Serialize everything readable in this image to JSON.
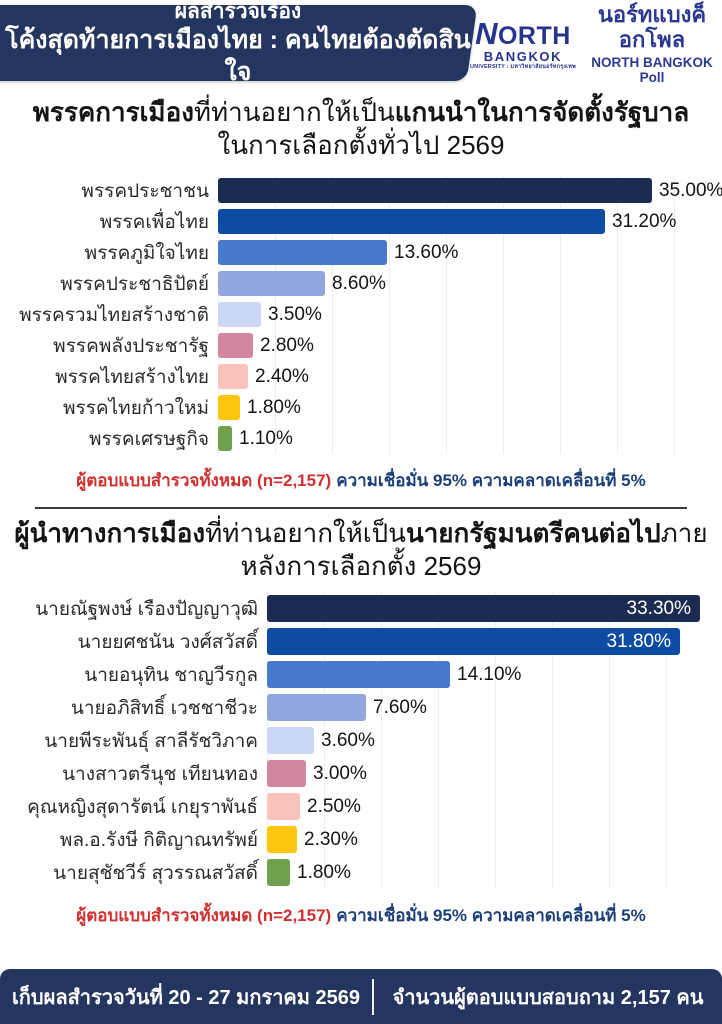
{
  "colors": {
    "navy_band": "#24365f",
    "bar_palette": [
      "#1b2b52",
      "#0c4ca3",
      "#4779cc",
      "#90a8dd",
      "#ccd6f5",
      "#d2879f",
      "#f9c3bc",
      "#fcc60d",
      "#70a04e"
    ],
    "note_red": "#d03030",
    "note_navy": "#1d3f77",
    "logo_blue": "#2b3990"
  },
  "header": {
    "banner_line1": "ผลสำรวจเรื่อง",
    "banner_line2": "โค้งสุดท้ายการเมืองไทย : คนไทยต้องตัดสินใจ",
    "logo": {
      "north": "ORTH",
      "north_initial": "N",
      "bangkok": "BANGKOK",
      "tagline": "UNIVERSITY : มหาวิทยาลัยนอร์ทกรุงเทพ",
      "poll_th": "นอร์ทแบงค็อกโพล",
      "poll_en": "NORTH BANGKOK Poll"
    }
  },
  "chart_data": [
    {
      "type": "bar",
      "orientation": "horizontal",
      "title": "พรรคการเมืองที่ท่านอยากให้เป็นแกนนำในการจัดตั้งรัฐบาล ในการเลือกตั้งทั่วไป 2569",
      "title_segments": [
        {
          "text": "พรรคการเมือง",
          "bold": true
        },
        {
          "text": "ที่ท่านอยากให้เป็น",
          "bold": false
        },
        {
          "text": "แกนนำในการจัดตั้งรัฐบาล",
          "bold": true
        }
      ],
      "title_line2": "ในการเลือกตั้งทั่วไป 2569",
      "categories": [
        "พรรคประชาชน",
        "พรรคเพื่อไทย",
        "พรรคภูมิใจไทย",
        "พรรคประชาธิปัตย์",
        "พรรครวมไทยสร้างชาติ",
        "พรรคพลังประชารัฐ",
        "พรรคไทยสร้างไทย",
        "พรรคไทยก้าวใหม่",
        "พรรคเศรษฐกิจ"
      ],
      "values": [
        35.0,
        31.2,
        13.6,
        8.6,
        3.5,
        2.8,
        2.4,
        1.8,
        1.1
      ],
      "value_labels": [
        "35.00%",
        "31.20%",
        "13.60%",
        "8.60%",
        "3.50%",
        "2.80%",
        "2.40%",
        "1.80%",
        "1.10%"
      ],
      "value_inside": [
        false,
        false,
        false,
        false,
        false,
        false,
        false,
        false,
        false
      ],
      "xlim": [
        0,
        40
      ],
      "grid": "faint-vertical",
      "note_red": "ผู้ตอบแบบสำรวจทั้งหมด (n=2,157)",
      "note_navy": "ความเชื่อมั่น 95% ความคลาดเคลื่อนที่ 5%"
    },
    {
      "type": "bar",
      "orientation": "horizontal",
      "title": "ผู้นำทางการเมืองที่ท่านอยากให้เป็นนายกรัฐมนตรีคนต่อไปภายหลังการเลือกตั้ง 2569",
      "title_segments": [
        {
          "text": "ผู้นำทางการเมือง",
          "bold": true
        },
        {
          "text": "ที่ท่านอยากให้เป็น",
          "bold": false
        },
        {
          "text": "นายกรัฐมนตรีคนต่อไป",
          "bold": true
        },
        {
          "text": "ภาย",
          "bold": false
        }
      ],
      "title_line2": "หลังการเลือกตั้ง 2569",
      "categories": [
        "นายณัฐพงษ์ เรืองปัญญาวุฒิ",
        "นายยศชนัน วงศ์สวัสดิ์",
        "นายอนุทิน ชาญวีรกูล",
        "นายอภิสิทธิ์ เวชชาชีวะ",
        "นายพีระพันธุ์ สาลีรัชวิภาค",
        "นางสาวตรีนุช เทียนทอง",
        "คุณหญิงสุดารัตน์ เกยุราพันธ์",
        "พล.อ.รังษี กิติญาณทรัพย์",
        "นายสุชัชวีร์ สุวรรณสวัสดิ์"
      ],
      "values": [
        33.3,
        31.8,
        14.1,
        7.6,
        3.6,
        3.0,
        2.5,
        2.3,
        1.8
      ],
      "value_labels": [
        "33.30%",
        "31.80%",
        "14.10%",
        "7.60%",
        "3.60%",
        "3.00%",
        "2.50%",
        "2.30%",
        "1.80%"
      ],
      "value_inside": [
        true,
        true,
        false,
        false,
        false,
        false,
        false,
        false,
        false
      ],
      "xlim": [
        0,
        35
      ],
      "grid": "faint-vertical",
      "note_red": "ผู้ตอบแบบสำรวจทั้งหมด (n=2,157)",
      "note_navy": "ความเชื่อมั่น 95% ความคลาดเคลื่อนที่ 5%"
    }
  ],
  "footer": {
    "left": "เก็บผลสำรวจวันที่ 20 - 27 มกราคม 2569",
    "right": "จำนวนผู้ตอบแบบสอบถาม 2,157 คน"
  }
}
